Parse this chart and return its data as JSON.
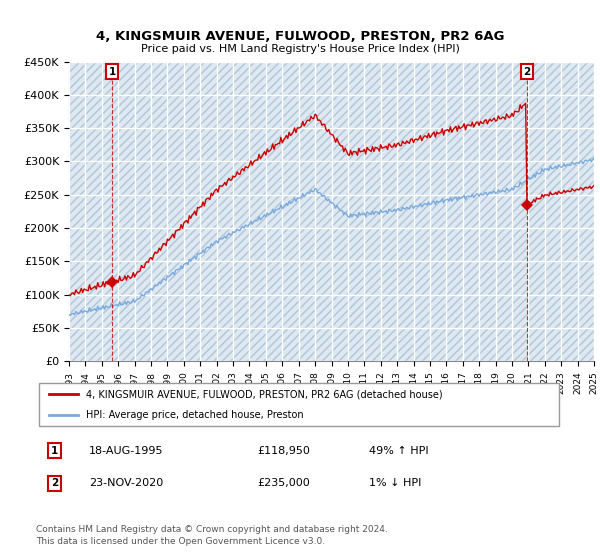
{
  "title_line1": "4, KINGSMUIR AVENUE, FULWOOD, PRESTON, PR2 6AG",
  "title_line2": "Price paid vs. HM Land Registry's House Price Index (HPI)",
  "ylim": [
    0,
    450000
  ],
  "yticks": [
    0,
    50000,
    100000,
    150000,
    200000,
    250000,
    300000,
    350000,
    400000,
    450000
  ],
  "ytick_labels": [
    "£0",
    "£50K",
    "£100K",
    "£150K",
    "£200K",
    "£250K",
    "£300K",
    "£350K",
    "£400K",
    "£450K"
  ],
  "t1": 1995.63,
  "p1": 118950,
  "t2": 2020.9,
  "p2": 235000,
  "hpi_color": "#7aaadd",
  "price_color": "#cc0000",
  "vline_color": "#cc0000",
  "grid_color": "#c8d8e8",
  "bg_color": "#dde8f0",
  "legend_label1": "4, KINGSMUIR AVENUE, FULWOOD, PRESTON, PR2 6AG (detached house)",
  "legend_label2": "HPI: Average price, detached house, Preston",
  "table_row1": [
    "1",
    "18-AUG-1995",
    "£118,950",
    "49% ↑ HPI"
  ],
  "table_row2": [
    "2",
    "23-NOV-2020",
    "£235,000",
    "1% ↓ HPI"
  ],
  "footer": "Contains HM Land Registry data © Crown copyright and database right 2024.\nThis data is licensed under the Open Government Licence v3.0.",
  "xmin": 1993,
  "xmax": 2025
}
